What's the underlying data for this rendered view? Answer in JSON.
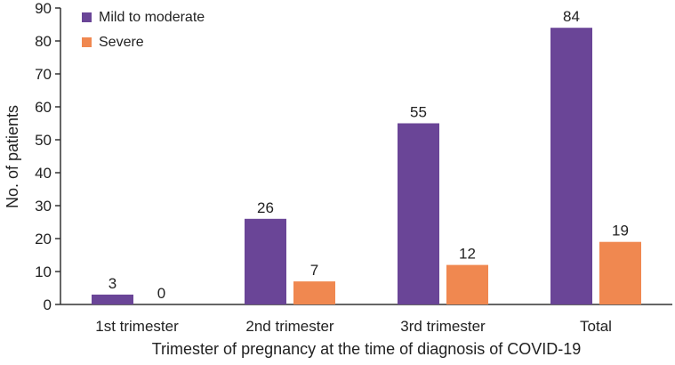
{
  "chart_data": {
    "type": "bar",
    "title": "",
    "xlabel": "Trimester of pregnancy at the time of diagnosis of COVID-19",
    "ylabel": "No. of patients",
    "ylim": [
      0,
      90
    ],
    "yticks": [
      0,
      10,
      20,
      30,
      40,
      50,
      60,
      70,
      80,
      90
    ],
    "categories": [
      "1st trimester",
      "2nd trimester",
      "3rd trimester",
      "Total"
    ],
    "series": [
      {
        "name": "Mild to moderate",
        "color": "#6a4597",
        "values": [
          3,
          26,
          55,
          84
        ]
      },
      {
        "name": "Severe",
        "color": "#f08850",
        "values": [
          0,
          7,
          12,
          19
        ]
      }
    ],
    "legend_position": "top-left",
    "grid": false,
    "data_labels": true
  }
}
